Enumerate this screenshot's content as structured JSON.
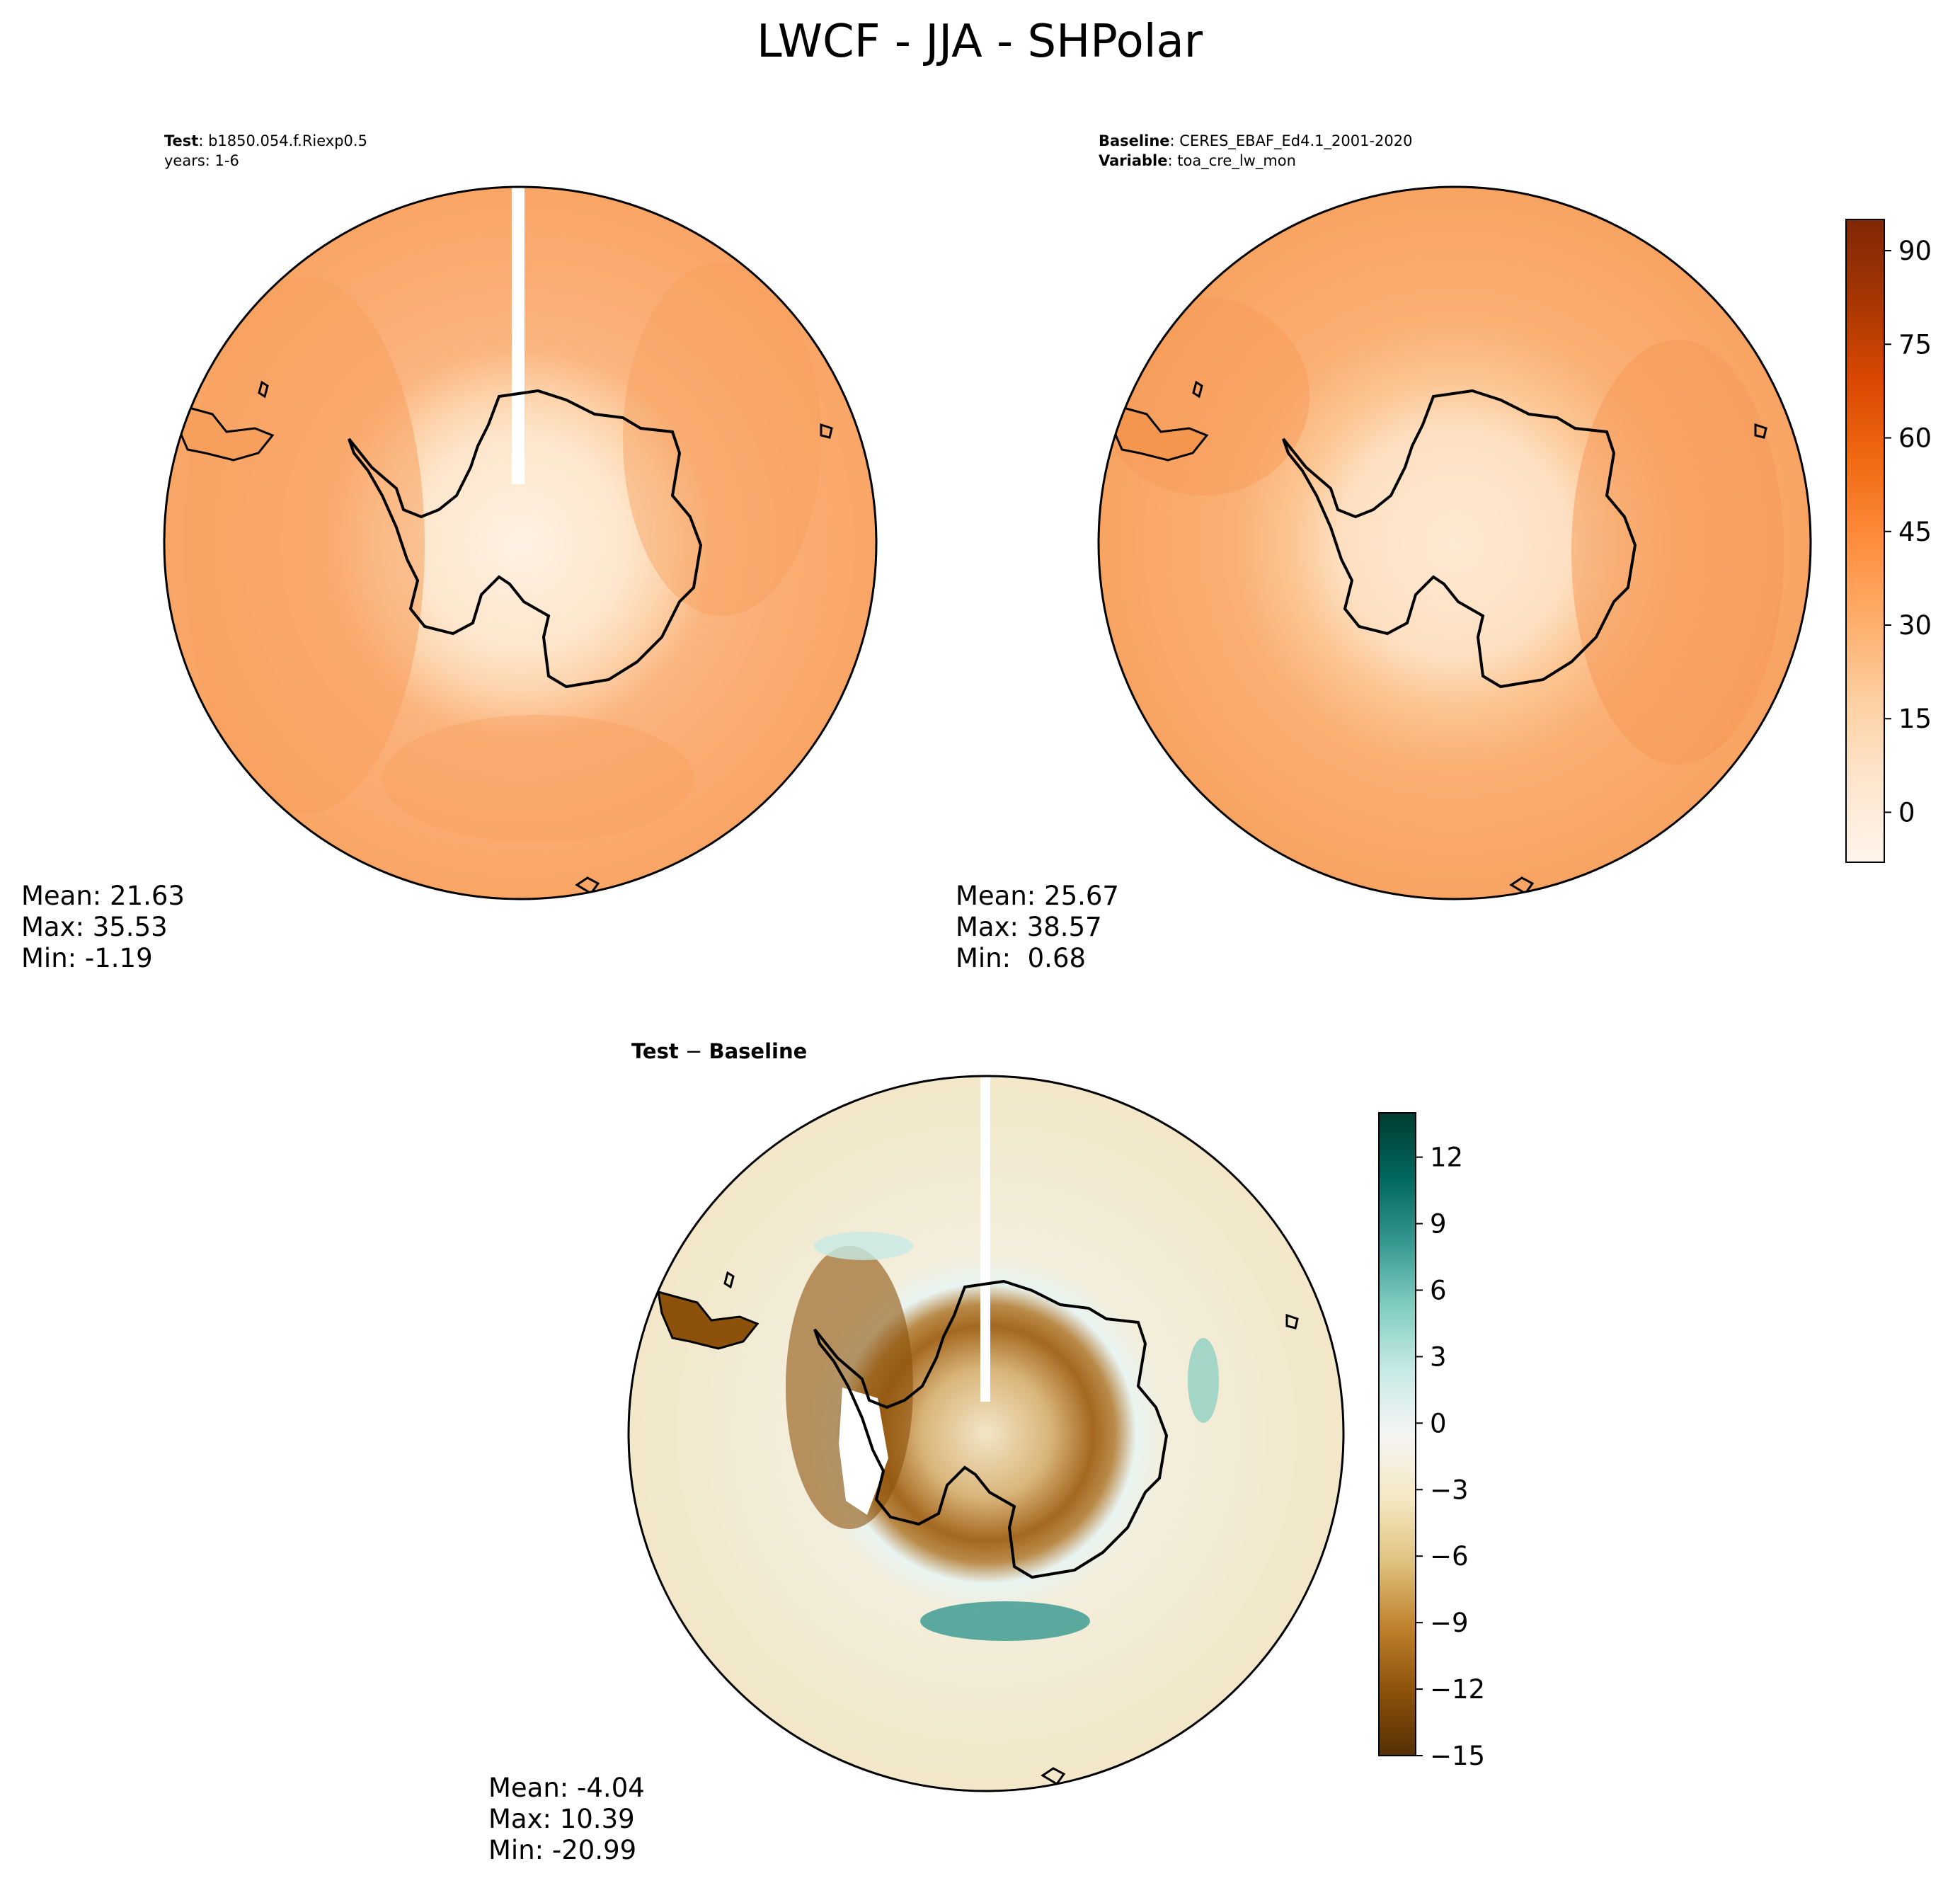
{
  "title": "LWCF - JJA - SHPolar",
  "panels": [
    {
      "id": "test",
      "header": [
        {
          "bold": "Test",
          "text": ": b1850.054.f.Riexp0.5"
        },
        {
          "bold": "",
          "text": "years: 1-6"
        }
      ],
      "stats": {
        "mean": "Mean: 21.63",
        "max": "Max: 35.53",
        "min": "Min: -1.19"
      }
    },
    {
      "id": "baseline",
      "header": [
        {
          "bold": "Baseline",
          "text": ": CERES_EBAF_Ed4.1_2001-2020"
        },
        {
          "bold": "Variable",
          "text": ": toa_cre_lw_mon"
        }
      ],
      "stats": {
        "mean": "Mean: 25.67",
        "max": "Max: 38.57",
        "min": "Min:  0.68"
      }
    },
    {
      "id": "diff",
      "header": [
        {
          "bold": "Test",
          "text": " − ",
          "bold2": "Baseline"
        }
      ],
      "stats": {
        "mean": "Mean: -4.04",
        "max": "Max: 10.39",
        "min": "Min: -20.99"
      }
    }
  ],
  "colorbars": [
    {
      "id": "abs",
      "cmap": "Oranges",
      "range": [
        -8,
        95
      ],
      "ticks": [
        "90",
        "75",
        "60",
        "45",
        "30",
        "15",
        "0"
      ],
      "tick_values": [
        90,
        75,
        60,
        45,
        30,
        15,
        0
      ],
      "colors": [
        "#fff5eb",
        "#fee6ce",
        "#fdd0a2",
        "#fdae6b",
        "#fd8d3c",
        "#f16913",
        "#d94801",
        "#a63603",
        "#7f2704"
      ]
    },
    {
      "id": "diff",
      "cmap": "BrBG",
      "range": [
        -15,
        14
      ],
      "ticks": [
        "12",
        "9",
        "6",
        "3",
        "0",
        "−3",
        "−6",
        "−9",
        "−12",
        "−15"
      ],
      "tick_values": [
        12,
        9,
        6,
        3,
        0,
        -3,
        -6,
        -9,
        -12,
        -15
      ],
      "colors": [
        "#543005",
        "#8c510a",
        "#bf812d",
        "#dfc27d",
        "#f6e8c3",
        "#f5f5f5",
        "#c7eae5",
        "#80cdc1",
        "#35978f",
        "#01665e",
        "#003c30"
      ]
    }
  ],
  "chart_data": [
    {
      "type": "heatmap",
      "projection": "south-polar-stereographic",
      "title": "Test",
      "mean": 21.63,
      "max": 35.53,
      "min": -1.19
    },
    {
      "type": "heatmap",
      "projection": "south-polar-stereographic",
      "title": "Baseline",
      "mean": 25.67,
      "max": 38.57,
      "min": 0.68
    },
    {
      "type": "heatmap",
      "projection": "south-polar-stereographic",
      "title": "Test − Baseline",
      "mean": -4.04,
      "max": 10.39,
      "min": -20.99
    }
  ]
}
